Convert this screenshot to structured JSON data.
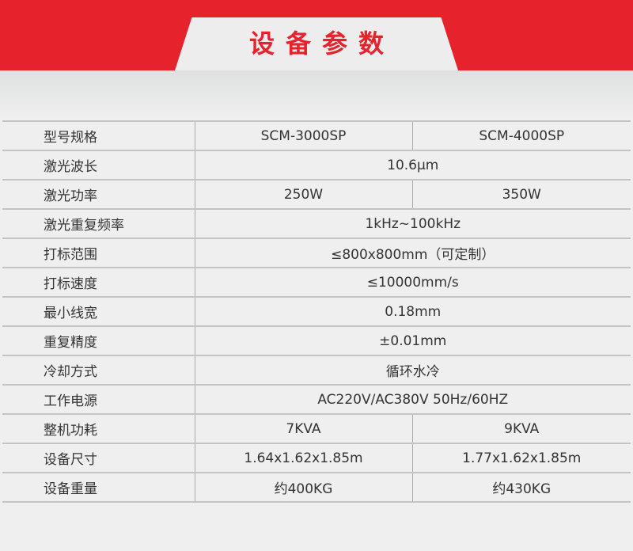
{
  "header": {
    "title": "设备参数",
    "accent": "#e6222d"
  },
  "table": {
    "rows": [
      {
        "label": "型号规格",
        "values": [
          "SCM-3000SP",
          "SCM-4000SP"
        ]
      },
      {
        "label": "激光波长",
        "values": [
          "10.6μm"
        ]
      },
      {
        "label": "激光功率",
        "values": [
          "250W",
          "350W"
        ]
      },
      {
        "label": "激光重复频率",
        "values": [
          "1kHz~100kHz"
        ]
      },
      {
        "label": "打标范围",
        "values": [
          "≤800x800mm（可定制）"
        ]
      },
      {
        "label": "打标速度",
        "values": [
          "≤10000mm/s"
        ]
      },
      {
        "label": "最小线宽",
        "values": [
          "0.18mm"
        ]
      },
      {
        "label": "重复精度",
        "values": [
          "±0.01mm"
        ]
      },
      {
        "label": "冷却方式",
        "values": [
          "循环水冷"
        ]
      },
      {
        "label": "工作电源",
        "values": [
          "AC220V/AC380V 50Hz/60HZ"
        ]
      },
      {
        "label": "整机功耗",
        "values": [
          "7KVA",
          "9KVA"
        ]
      },
      {
        "label": "设备尺寸",
        "values": [
          "1.64x1.62x1.85m",
          "1.77x1.62x1.85m"
        ]
      },
      {
        "label": "设备重量",
        "values": [
          "约400KG",
          "约430KG"
        ]
      }
    ]
  }
}
